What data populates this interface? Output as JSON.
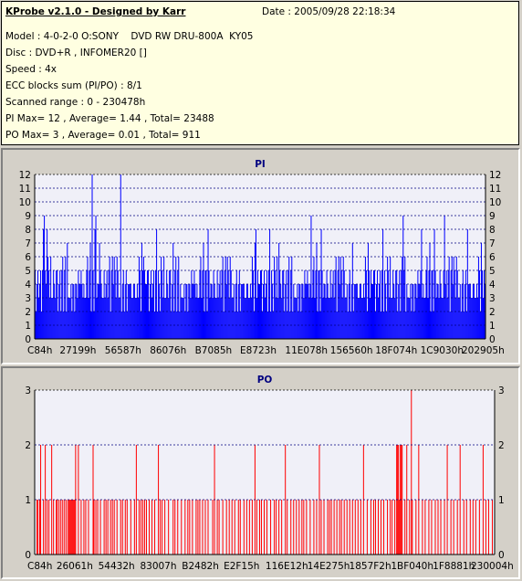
{
  "info": {
    "title": "KProbe v2.1.0 - Designed by Karr",
    "date": "Date : 2005/09/28 22:18:34",
    "lines": [
      "Model : 4-0-2-0 O:SONY    DVD RW DRU-800A  KY05",
      "Disc : DVD+R , INFOMER20 []",
      "Speed : 4x",
      "ECC blocks sum (PI/PO) : 8/1",
      "Scanned range : 0 - 230478h",
      "PI Max= 12 , Average= 1.44 , Total= 23488",
      "PO Max= 3 , Average= 0.01 , Total= 911"
    ]
  },
  "colors": {
    "pi_bars": "#0000ff",
    "po_bars": "#ff0000",
    "plot_bg": "#f0f0f8",
    "gridline": "#000080"
  },
  "chart_data": [
    {
      "type": "bar",
      "title": "PI",
      "ylim": [
        0,
        12
      ],
      "yticks": [
        0,
        1,
        2,
        3,
        4,
        5,
        6,
        7,
        8,
        9,
        10,
        11,
        12
      ],
      "xtick_labels": [
        "C84h",
        "27199h",
        "56587h",
        "86076h",
        "B7085h",
        "E8723h",
        "11E078h",
        "156560h",
        "18F074h",
        "1C9030h",
        "202905h"
      ],
      "grid": "horizontal dashed",
      "series": [
        {
          "pattern": [
            5,
            3,
            4,
            2,
            5,
            3,
            4,
            2,
            6,
            3,
            4,
            3,
            5,
            2,
            4,
            3,
            5,
            4,
            3,
            2,
            6,
            3,
            5,
            2,
            4,
            3,
            4,
            2,
            5,
            3,
            7,
            4,
            3,
            2,
            5,
            3,
            4,
            2,
            5,
            3,
            4,
            2,
            6,
            3,
            5,
            3,
            4,
            2,
            5,
            4,
            3,
            2,
            5,
            3,
            4,
            2,
            6,
            3,
            5,
            2,
            4,
            3,
            4,
            2,
            5,
            3,
            8,
            4,
            3,
            2,
            5,
            3,
            4,
            2,
            5,
            3,
            4,
            2,
            6,
            3,
            5,
            3
          ],
          "peaks": [
            [
              10,
              9
            ],
            [
              13,
              8
            ],
            [
              35,
              7
            ],
            [
              62,
              12
            ],
            [
              66,
              9
            ],
            [
              70,
              7
            ],
            [
              93,
              12
            ],
            [
              118,
              6
            ],
            [
              150,
              7
            ],
            [
              180,
              6
            ],
            [
              240,
              8
            ],
            [
              265,
              7
            ],
            [
              300,
              9
            ],
            [
              345,
              7
            ],
            [
              400,
              9
            ],
            [
              420,
              8
            ],
            [
              445,
              9
            ],
            [
              470,
              8
            ]
          ],
          "bar_count": 490
        }
      ]
    },
    {
      "type": "bar",
      "title": "PO",
      "ylim": [
        0,
        3
      ],
      "yticks": [
        0,
        1,
        2,
        3
      ],
      "xtick_labels": [
        "C84h",
        "26061h",
        "54432h",
        "83007h",
        "B2482h",
        "E2F15h",
        "116E12h",
        "14E275h",
        "1857F2h",
        "1BF040h",
        "1F8881h",
        "230004h"
      ],
      "grid": "horizontal dashed",
      "series": [
        {
          "ones": [
            2,
            3,
            5,
            6,
            9,
            11,
            13,
            15,
            18,
            20,
            23,
            24,
            26,
            28,
            30,
            32,
            34,
            36,
            37,
            38,
            39,
            40,
            41,
            42,
            43,
            44,
            47,
            50,
            53,
            55,
            58,
            63,
            64,
            66,
            68,
            71,
            75,
            77,
            79,
            82,
            84,
            86,
            89,
            93,
            95,
            98,
            100,
            104,
            108,
            110,
            113,
            115,
            117,
            119,
            121,
            124,
            127,
            130,
            134,
            136,
            138,
            141,
            145,
            150,
            152,
            155,
            159,
            163,
            166,
            168,
            171,
            175,
            177,
            179,
            182,
            185,
            188,
            193,
            195,
            198,
            200,
            204,
            208,
            211,
            214,
            217,
            221,
            223,
            227,
            230,
            233,
            236,
            239,
            241,
            244,
            246,
            249,
            252,
            256,
            260,
            262,
            265,
            268,
            272,
            274,
            278,
            281,
            284,
            287,
            290,
            292,
            295,
            299,
            303,
            306,
            309,
            311,
            314,
            318,
            320,
            322,
            325,
            328,
            331,
            333,
            336,
            339,
            342,
            345,
            348,
            351,
            354,
            357,
            361,
            365,
            368,
            370,
            373,
            376,
            379,
            383,
            386,
            388,
            391,
            393,
            394,
            395,
            396,
            397,
            398,
            399,
            402,
            404,
            407,
            410,
            414,
            417,
            421,
            424,
            428,
            431,
            435,
            438,
            441,
            445,
            448,
            452,
            455,
            459,
            462,
            466,
            469,
            473,
            476,
            479,
            483,
            487,
            490,
            493,
            497
          ],
          "twos": [
            [
              6,
              2
            ],
            [
              11,
              2
            ],
            [
              18,
              2
            ],
            [
              44,
              2
            ],
            [
              47,
              2
            ],
            [
              63,
              2
            ],
            [
              110,
              2
            ],
            [
              134,
              2
            ],
            [
              195,
              2
            ],
            [
              239,
              2
            ],
            [
              272,
              2
            ],
            [
              309,
              2
            ],
            [
              357,
              2
            ],
            [
              393,
              2
            ],
            [
              394,
              2
            ],
            [
              395,
              2
            ],
            [
              397,
              2
            ],
            [
              398,
              2
            ],
            [
              399,
              2
            ],
            [
              404,
              2
            ],
            [
              417,
              2
            ],
            [
              448,
              2
            ],
            [
              462,
              2
            ],
            [
              487,
              2
            ]
          ],
          "threes": [
            409
          ],
          "bar_count": 500
        }
      ]
    }
  ]
}
